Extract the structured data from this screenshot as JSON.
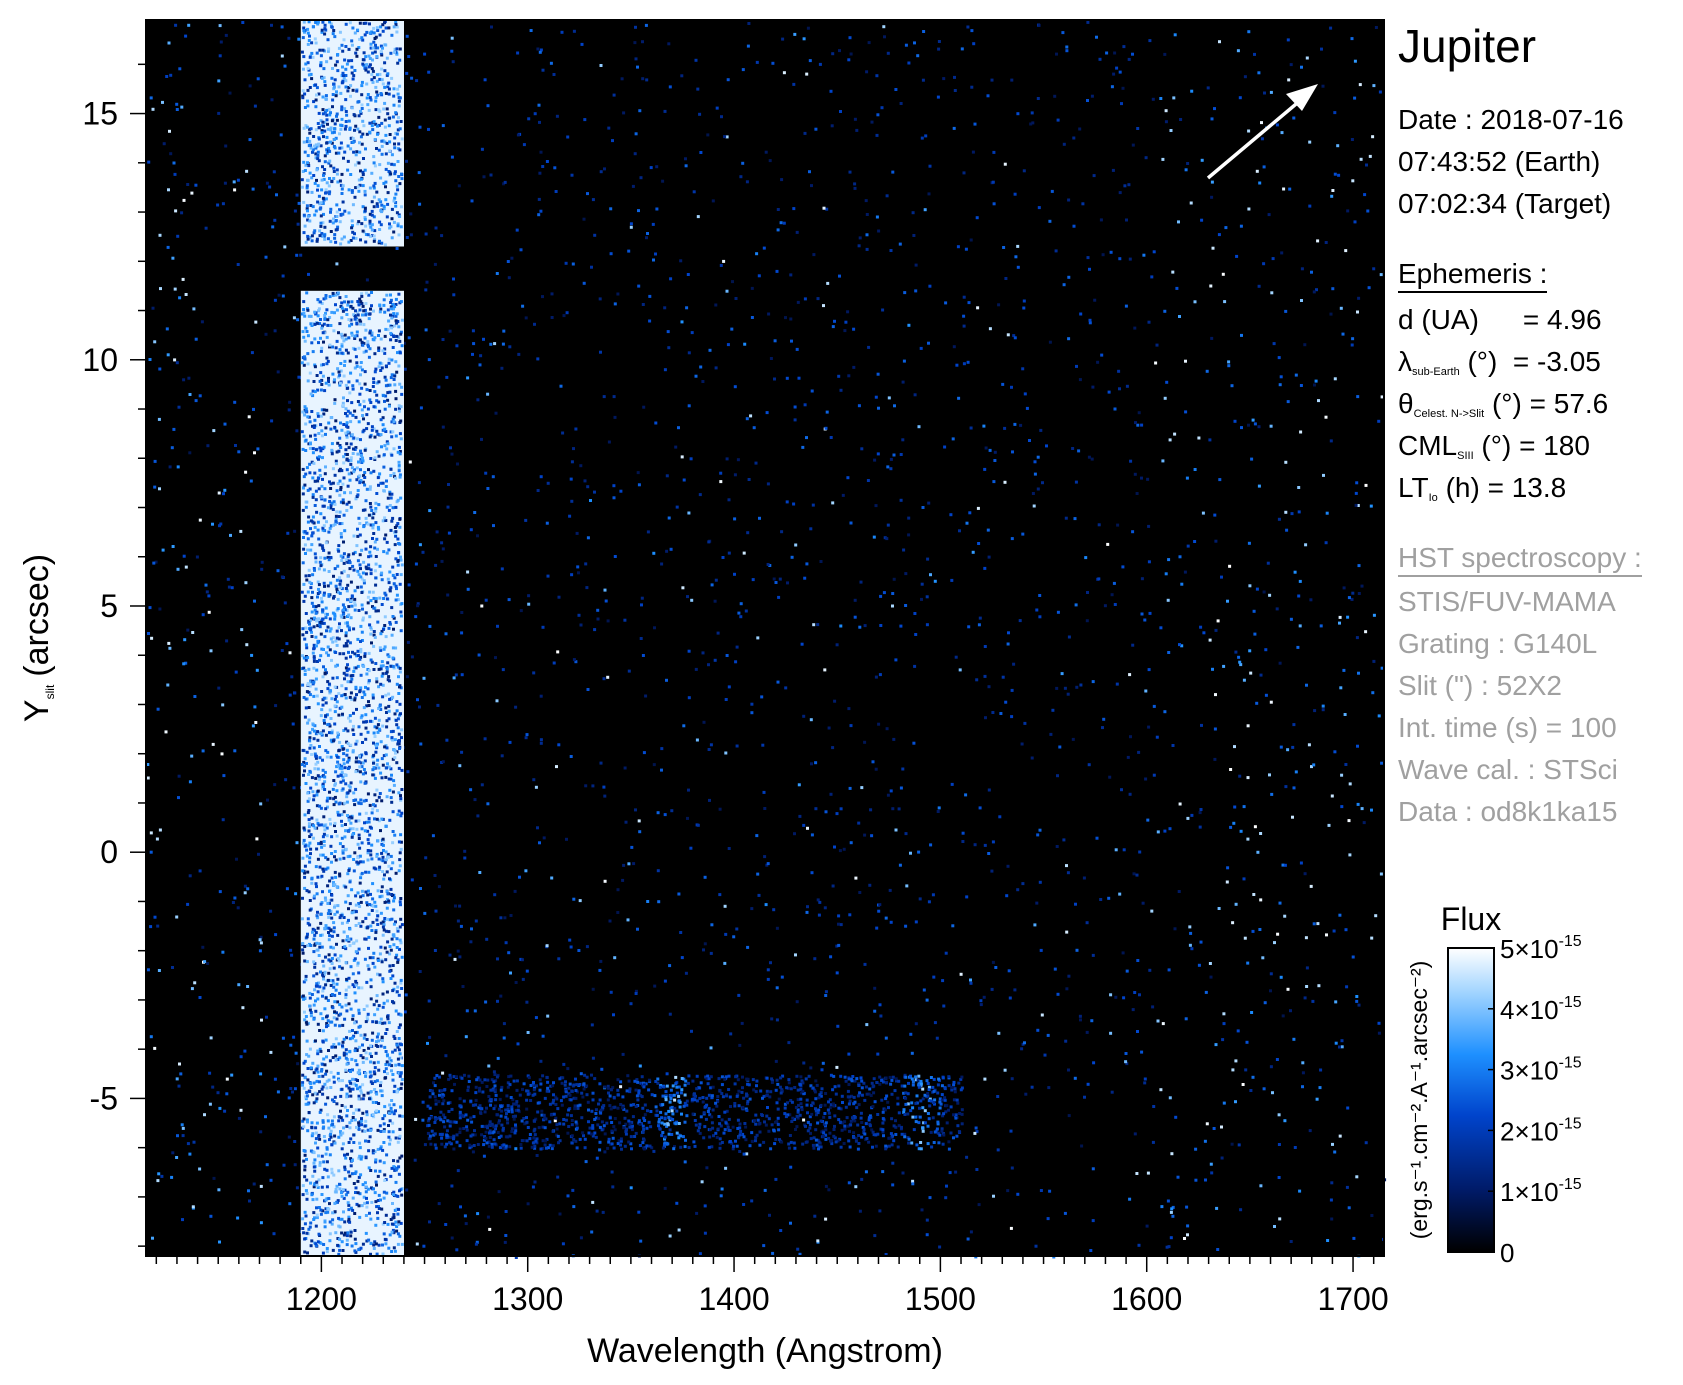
{
  "chart_data": {
    "type": "heatmap",
    "title": "",
    "xlabel": "Wavelength (Angstrom)",
    "ylabel": "Y",
    "ylabel_sub": "slit",
    "ylabel_unit": "(arcsec)",
    "xlim": [
      1115,
      1715
    ],
    "ylim": [
      -8.2,
      16.9
    ],
    "x_ticks": [
      1200,
      1300,
      1400,
      1500,
      1600,
      1700
    ],
    "x_tick_labels": [
      "1200",
      "1300",
      "1400",
      "1500",
      "1600",
      "1700"
    ],
    "y_ticks": [
      -5,
      0,
      5,
      10,
      15
    ],
    "y_tick_labels": [
      "-5",
      "0",
      "5",
      "10",
      "15"
    ],
    "colorscale": [
      "#000000",
      "#001a66",
      "#0044cc",
      "#1e90ff",
      "#9fd3ff",
      "#ffffff"
    ],
    "features": [
      {
        "name": "Lyman-alpha geocoronal band",
        "x_range": [
          1190,
          1240
        ],
        "y_range": [
          -8.2,
          16.9
        ],
        "gap_y": [
          11.4,
          12.3
        ],
        "intensity": 1.0
      },
      {
        "name": "auroral emission band",
        "x_range": [
          1250,
          1510
        ],
        "y_range": [
          -6.0,
          -4.5
        ],
        "peaks_x": [
          1370,
          1490
        ],
        "intensity": 0.35
      }
    ],
    "colorbar": {
      "title": "Flux",
      "units": "(erg.s⁻¹.cm⁻².A⁻¹.arcsec⁻²)",
      "range": [
        0,
        5e-15
      ],
      "tick_values": [
        0,
        1e-15,
        2e-15,
        3e-15,
        4e-15,
        5e-15
      ],
      "tick_mantissas": [
        "0",
        "1×10",
        "2×10",
        "3×10",
        "4×10",
        "5×10"
      ],
      "tick_exponents": [
        "",
        "-15",
        "-15",
        "-15",
        "-15",
        "-15"
      ]
    },
    "arrow_direction": "up-right",
    "grid": false,
    "legend": "colorbar right"
  },
  "info": {
    "target": "Jupiter",
    "date_line": "Date : 2018-07-16",
    "earth_time": "07:43:52 (Earth)",
    "target_time": "07:02:34 (Target)",
    "ephem_header": "Ephemeris :",
    "ephem": [
      {
        "sym": "d (UA)",
        "sub": "",
        "rest": "",
        "value": "= 4.96"
      },
      {
        "sym": "λ",
        "sub": "sub-Earth",
        "rest": "(°)",
        "value": "= -3.05"
      },
      {
        "sym": "θ",
        "sub": "Celest. N->Slit",
        "rest": "(°)",
        "value": "= 57.6"
      },
      {
        "sym": "CML",
        "sub": "SIII",
        "rest": "(°)",
        "value": "= 180"
      },
      {
        "sym": "LT",
        "sub": "Io",
        "rest": "(h)",
        "value": "= 13.8"
      }
    ],
    "hst_header": "HST spectroscopy :",
    "hst": [
      "STIS/FUV-MAMA",
      "Grating : G140L",
      "Slit (\") : 52X2",
      "Int. time (s) = 100",
      "Wave cal. : STSci",
      "Data : od8k1ka15"
    ]
  }
}
